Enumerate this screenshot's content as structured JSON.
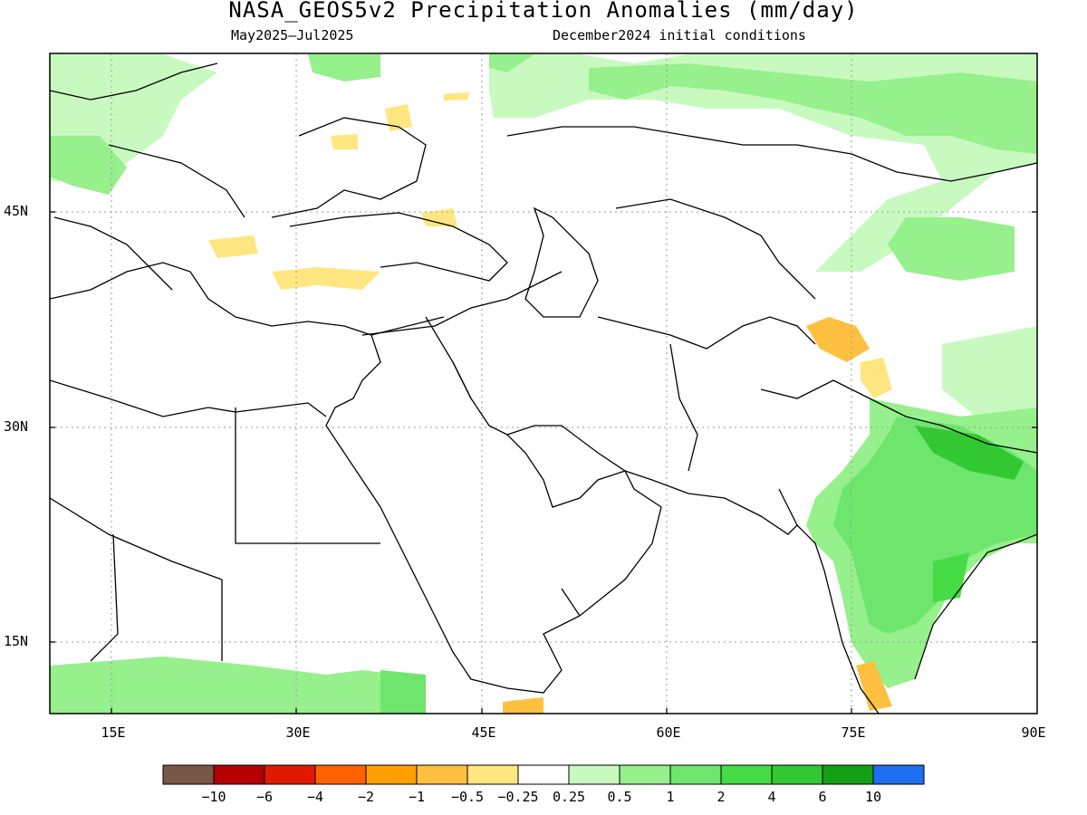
{
  "title": "NASA_GEOS5v2 Precipitation Anomalies (mm/day)",
  "period": "May2025–Jul2025",
  "init": "December2024 initial conditions",
  "lat_labels": [
    "45N",
    "30N",
    "15N"
  ],
  "lon_labels": [
    "15E",
    "30E",
    "45E",
    "60E",
    "75E",
    "90E"
  ],
  "colorbar": {
    "colors": [
      "#7a5647",
      "#b40000",
      "#e01a00",
      "#ff6200",
      "#ffa000",
      "#ffc040",
      "#ffe680",
      "#ffffff",
      "#c8fac0",
      "#96f08c",
      "#6ee66e",
      "#46dc46",
      "#32c832",
      "#14a014",
      "#1e6ef0"
    ],
    "labels": [
      "−10",
      "−6",
      "−4",
      "−2",
      "−1",
      "−0.5",
      "−0.25",
      "0.25",
      "0.5",
      "1",
      "2",
      "4",
      "6",
      "10"
    ]
  }
}
